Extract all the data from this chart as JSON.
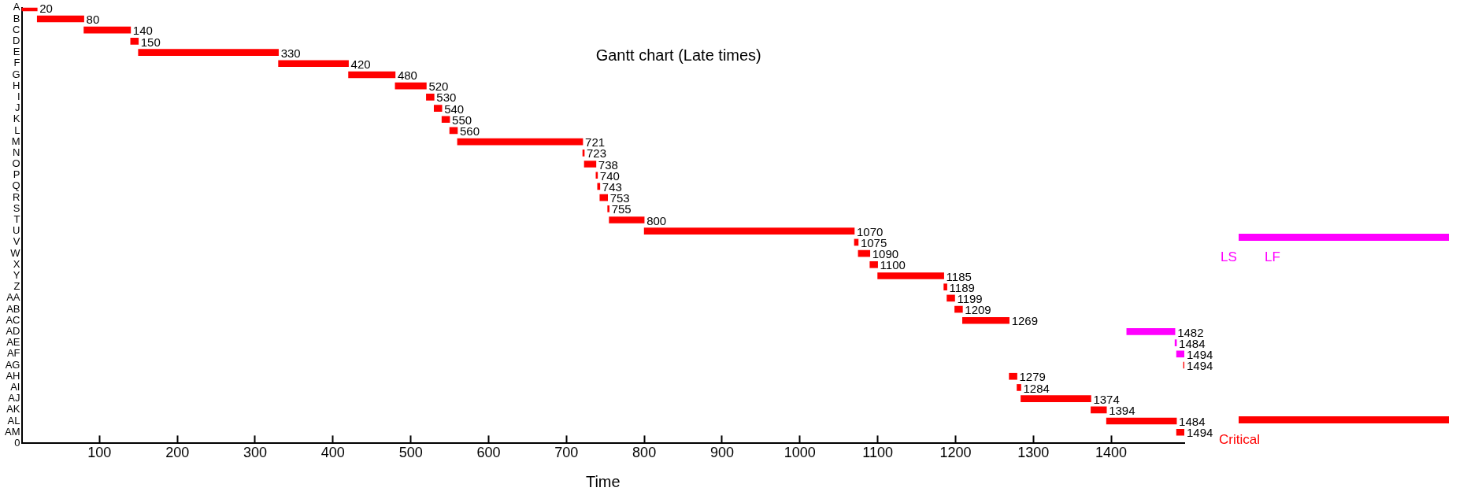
{
  "chart_data": {
    "type": "bar",
    "orientation": "horizontal",
    "title": "Gantt chart (Late times)",
    "xlabel": "Time",
    "categories": [
      "A",
      "B",
      "C",
      "D",
      "E",
      "F",
      "G",
      "H",
      "I",
      "J",
      "K",
      "L",
      "M",
      "N",
      "O",
      "P",
      "Q",
      "R",
      "S",
      "T",
      "U",
      "V",
      "W",
      "X",
      "Y",
      "Z",
      "AA",
      "AB",
      "AC",
      "AD",
      "AE",
      "AF",
      "AG",
      "AH",
      "AI",
      "AJ",
      "AK",
      "AL",
      "AM",
      "0"
    ],
    "xlim": [
      0,
      1494
    ],
    "xticks": [
      100,
      200,
      300,
      400,
      500,
      600,
      700,
      800,
      900,
      1000,
      1100,
      1200,
      1300,
      1400
    ],
    "grid": false,
    "legend": "right",
    "annotations": [
      "LS",
      "LF"
    ],
    "series": [
      {
        "name": "Critical",
        "color": "#ff0000",
        "base": [
          0,
          20,
          80,
          140,
          150,
          330,
          420,
          480,
          520,
          530,
          540,
          550,
          560,
          721,
          723,
          738,
          740,
          743,
          753,
          755,
          800,
          1070,
          1075,
          1090,
          1100,
          1185,
          1189,
          1199,
          1209,
          null,
          null,
          null,
          1493,
          1269,
          1279,
          1284,
          1374,
          1394,
          1484,
          null
        ],
        "values": [
          20,
          60,
          60,
          10,
          180,
          90,
          60,
          40,
          10,
          10,
          10,
          10,
          161,
          2,
          15,
          2,
          3,
          10,
          2,
          45,
          270,
          5,
          15,
          10,
          85,
          4,
          10,
          10,
          60,
          null,
          null,
          null,
          1,
          10,
          5,
          90,
          20,
          90,
          10,
          null
        ],
        "value_labels": [
          "20",
          "80",
          "140",
          "150",
          "330",
          "420",
          "480",
          "520",
          "530",
          "540",
          "550",
          "560",
          "721",
          "723",
          "738",
          "740",
          "743",
          "753",
          "755",
          "800",
          "1070",
          "1075",
          "1090",
          "1100",
          "1185",
          "1189",
          "1199",
          "1209",
          "1269",
          null,
          null,
          null,
          "1494",
          "1279",
          "1284",
          "1374",
          "1394",
          "1484",
          "1494",
          null
        ]
      },
      {
        "color": "#ff00ff",
        "base": [
          null,
          null,
          null,
          null,
          null,
          null,
          null,
          null,
          null,
          null,
          null,
          null,
          null,
          null,
          null,
          null,
          null,
          null,
          null,
          null,
          null,
          null,
          null,
          null,
          null,
          null,
          null,
          null,
          null,
          1420,
          1482,
          1484,
          null,
          null,
          null,
          null,
          null,
          null,
          null,
          null
        ],
        "values": [
          null,
          null,
          null,
          null,
          null,
          null,
          null,
          null,
          null,
          null,
          null,
          null,
          null,
          null,
          null,
          null,
          null,
          null,
          null,
          null,
          null,
          null,
          null,
          null,
          null,
          null,
          null,
          null,
          null,
          62,
          2,
          10,
          null,
          null,
          null,
          null,
          null,
          null,
          null,
          null
        ],
        "value_labels": [
          null,
          null,
          null,
          null,
          null,
          null,
          null,
          null,
          null,
          null,
          null,
          null,
          null,
          null,
          null,
          null,
          null,
          null,
          null,
          null,
          null,
          null,
          null,
          null,
          null,
          null,
          null,
          null,
          null,
          "1482",
          "1484",
          "1494",
          null,
          null,
          null,
          null,
          null,
          null,
          null,
          null
        ]
      }
    ]
  }
}
